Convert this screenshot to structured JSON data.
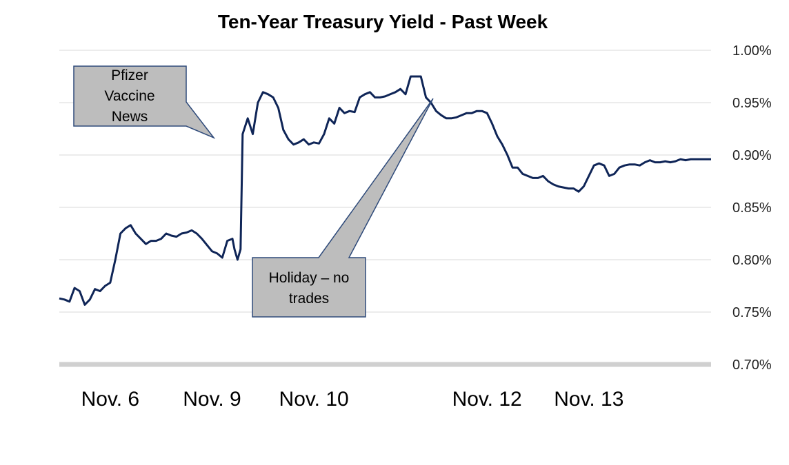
{
  "chart_data": {
    "type": "line",
    "title": "Ten-Year Treasury Yield - Past Week",
    "xlabel": "",
    "ylabel": "",
    "ylim": [
      0.7,
      1.0
    ],
    "y_tick_labels": [
      "1.00%",
      "0.95%",
      "0.90%",
      "0.85%",
      "0.80%",
      "0.75%",
      "0.70%"
    ],
    "y_tick_values": [
      1.0,
      0.95,
      0.9,
      0.85,
      0.8,
      0.75,
      0.7
    ],
    "x_tick_labels": [
      {
        "label": "Nov. 6",
        "x": 0.5
      },
      {
        "label": "Nov. 9",
        "x": 1.5
      },
      {
        "label": "Nov. 10",
        "x": 2.5
      },
      {
        "label": "Nov. 12",
        "x": 4.2
      },
      {
        "label": "Nov. 13",
        "x": 5.2
      }
    ],
    "xlim": [
      0,
      6.4
    ],
    "grid": true,
    "legend": "none",
    "series_color": "#0f2557",
    "series": [
      {
        "x": [
          0.0,
          0.05,
          0.1,
          0.15,
          0.2,
          0.25,
          0.3,
          0.35,
          0.4,
          0.45,
          0.5,
          0.55,
          0.6,
          0.65,
          0.7,
          0.75,
          0.8,
          0.85,
          0.9,
          0.95,
          1.0,
          1.05,
          1.1,
          1.15,
          1.2,
          1.25,
          1.3,
          1.35,
          1.4,
          1.45,
          1.5,
          1.55,
          1.6,
          1.65,
          1.7,
          1.72,
          1.75,
          1.78,
          1.8,
          1.85,
          1.9,
          1.95,
          2.0,
          2.05,
          2.1,
          2.15,
          2.2,
          2.25,
          2.3,
          2.35,
          2.4,
          2.45,
          2.5,
          2.55,
          2.6,
          2.65,
          2.7,
          2.75,
          2.8,
          2.85,
          2.9,
          2.95,
          3.0,
          3.05,
          3.1,
          3.15,
          3.2,
          3.25,
          3.3,
          3.35,
          3.4,
          3.45,
          3.5,
          3.55,
          3.6,
          3.65,
          3.7,
          3.75,
          3.8,
          3.85,
          3.9,
          3.95,
          4.0,
          4.05,
          4.1,
          4.15,
          4.2,
          4.25,
          4.3,
          4.35,
          4.4,
          4.45,
          4.5,
          4.55,
          4.6,
          4.65,
          4.7,
          4.75,
          4.8,
          4.85,
          4.9,
          4.95,
          5.0,
          5.05,
          5.1,
          5.15,
          5.2,
          5.25,
          5.3,
          5.35,
          5.4,
          5.45,
          5.5,
          5.55,
          5.6,
          5.65,
          5.7,
          5.75,
          5.8,
          5.85,
          5.9,
          5.95,
          6.0,
          6.05,
          6.1,
          6.15,
          6.2,
          6.25,
          6.3,
          6.35,
          6.4
        ],
        "values": [
          0.763,
          0.762,
          0.76,
          0.773,
          0.77,
          0.757,
          0.762,
          0.772,
          0.77,
          0.775,
          0.778,
          0.8,
          0.825,
          0.83,
          0.833,
          0.825,
          0.82,
          0.815,
          0.818,
          0.818,
          0.82,
          0.825,
          0.823,
          0.822,
          0.825,
          0.826,
          0.828,
          0.825,
          0.82,
          0.814,
          0.808,
          0.806,
          0.802,
          0.818,
          0.82,
          0.81,
          0.8,
          0.81,
          0.92,
          0.935,
          0.92,
          0.95,
          0.96,
          0.958,
          0.955,
          0.945,
          0.924,
          0.915,
          0.91,
          0.912,
          0.915,
          0.91,
          0.912,
          0.911,
          0.92,
          0.935,
          0.93,
          0.945,
          0.94,
          0.942,
          0.941,
          0.955,
          0.958,
          0.96,
          0.955,
          0.955,
          0.956,
          0.958,
          0.96,
          0.963,
          0.958,
          0.975,
          0.975,
          0.975,
          0.955,
          0.95,
          0.942,
          0.938,
          0.935,
          0.935,
          0.936,
          0.938,
          0.94,
          0.94,
          0.942,
          0.942,
          0.94,
          0.93,
          0.918,
          0.91,
          0.9,
          0.888,
          0.888,
          0.882,
          0.88,
          0.878,
          0.878,
          0.88,
          0.875,
          0.872,
          0.87,
          0.869,
          0.868,
          0.868,
          0.865,
          0.87,
          0.88,
          0.89,
          0.892,
          0.89,
          0.88,
          0.882,
          0.888,
          0.89,
          0.891,
          0.891,
          0.89,
          0.893,
          0.895,
          0.893,
          0.893,
          0.894,
          0.893,
          0.894,
          0.896,
          0.895,
          0.896,
          0.896,
          0.896,
          0.896,
          0.896
        ]
      }
    ],
    "annotations": [
      {
        "text_lines": [
          "Pfizer",
          "Vaccine",
          "News"
        ]
      },
      {
        "text_lines": [
          "Holiday – no",
          "trades"
        ]
      }
    ]
  }
}
